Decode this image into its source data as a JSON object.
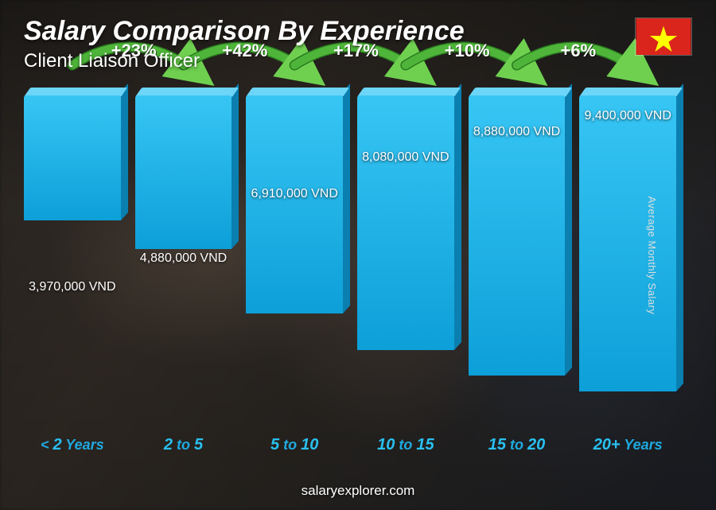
{
  "header": {
    "title": "Salary Comparison By Experience",
    "subtitle": "Client Liaison Officer"
  },
  "flag": {
    "name": "vietnam-flag",
    "bg_color": "#da251d",
    "star_color": "#ffff00"
  },
  "y_axis_label": "Average Monthly Salary",
  "footer": "salaryexplorer.com",
  "chart": {
    "type": "bar",
    "max_value": 9400000,
    "currency_suffix": " VND",
    "bar_gradient_top": "#37c6f4",
    "bar_gradient_bottom": "#0d9fd8",
    "bar_top_color": "#6dd5f7",
    "bar_side_color": "#0a7fb0",
    "x_label_color": "#1fa9e0",
    "x_label_num_color": "#29c0f0",
    "growth_arc_color": "#4fb53a",
    "growth_arrow_color": "#6fd050",
    "value_label_color": "#ffffff",
    "bars": [
      {
        "x_prefix": "< ",
        "x_num": "2",
        "x_suffix": " Years",
        "value": 3970000,
        "value_label": "3,970,000 VND",
        "growth_pct": null
      },
      {
        "x_prefix": "",
        "x_num": "2",
        "x_mid": " to ",
        "x_num2": "5",
        "x_suffix": "",
        "value": 4880000,
        "value_label": "4,880,000 VND",
        "growth_pct": "+23%"
      },
      {
        "x_prefix": "",
        "x_num": "5",
        "x_mid": " to ",
        "x_num2": "10",
        "x_suffix": "",
        "value": 6910000,
        "value_label": "6,910,000 VND",
        "growth_pct": "+42%"
      },
      {
        "x_prefix": "",
        "x_num": "10",
        "x_mid": " to ",
        "x_num2": "15",
        "x_suffix": "",
        "value": 8080000,
        "value_label": "8,080,000 VND",
        "growth_pct": "+17%"
      },
      {
        "x_prefix": "",
        "x_num": "15",
        "x_mid": " to ",
        "x_num2": "20",
        "x_suffix": "",
        "value": 8880000,
        "value_label": "8,880,000 VND",
        "growth_pct": "+10%"
      },
      {
        "x_prefix": "",
        "x_num": "20+",
        "x_suffix": " Years",
        "value": 9400000,
        "value_label": "9,400,000 VND",
        "growth_pct": "+6%"
      }
    ]
  }
}
